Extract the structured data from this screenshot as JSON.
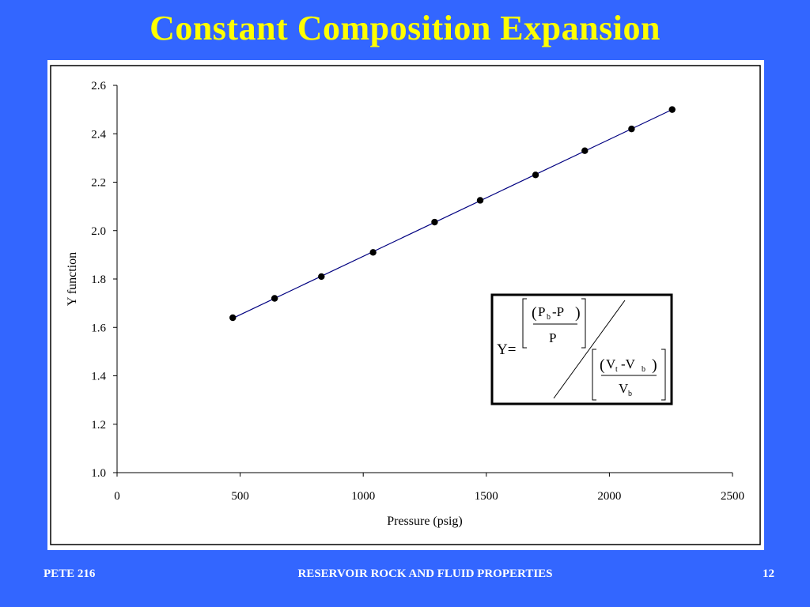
{
  "slide": {
    "title": "Constant Composition Expansion",
    "title_color": "#FFFF00",
    "background_color": "#3366FF"
  },
  "footer": {
    "left": "PETE 216",
    "center": "RESERVOIR ROCK AND FLUID PROPERTIES",
    "right": "12"
  },
  "chart_data": {
    "type": "scatter",
    "title": "",
    "xlabel": "Pressure (psig)",
    "ylabel": "Y function",
    "xlim": [
      0,
      2500
    ],
    "ylim": [
      1.0,
      2.6
    ],
    "x_ticks": [
      "0",
      "500",
      "1000",
      "1500",
      "2000",
      "2500"
    ],
    "y_ticks": [
      "1.0",
      "1.2",
      "1.4",
      "1.6",
      "1.8",
      "2.0",
      "2.2",
      "2.4",
      "2.6"
    ],
    "grid": false,
    "legend": "none",
    "series": [
      {
        "marker_color": "#000000",
        "trendline_color": "#000080",
        "x": [
          470,
          640,
          830,
          1040,
          1290,
          1475,
          1700,
          1900,
          2090,
          2255
        ],
        "y": [
          1.64,
          1.72,
          1.81,
          1.91,
          2.035,
          2.125,
          2.23,
          2.33,
          2.42,
          2.5
        ]
      }
    ],
    "annotation": {
      "type": "equation",
      "lhs": "Y=",
      "numerator": {
        "top": [
          "P",
          "b",
          "-P"
        ],
        "bottom": "P"
      },
      "denominator": {
        "top": [
          "V",
          "t",
          "-V",
          "b"
        ],
        "bottom": [
          "V",
          "b"
        ]
      }
    }
  }
}
